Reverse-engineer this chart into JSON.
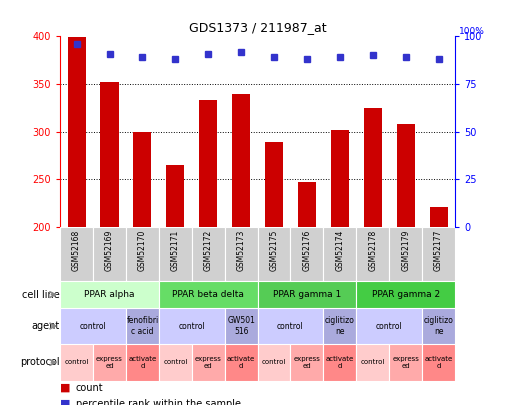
{
  "title": "GDS1373 / 211987_at",
  "samples": [
    "GSM52168",
    "GSM52169",
    "GSM52170",
    "GSM52171",
    "GSM52172",
    "GSM52173",
    "GSM52175",
    "GSM52176",
    "GSM52174",
    "GSM52178",
    "GSM52179",
    "GSM52177"
  ],
  "counts": [
    399,
    352,
    300,
    265,
    333,
    340,
    289,
    247,
    302,
    325,
    308,
    221
  ],
  "percentile": [
    96,
    91,
    89,
    88,
    91,
    92,
    89,
    88,
    89,
    90,
    89,
    88
  ],
  "bar_color": "#cc0000",
  "dot_color": "#3333cc",
  "ylim_left": [
    200,
    400
  ],
  "ylim_right": [
    0,
    100
  ],
  "yticks_left": [
    200,
    250,
    300,
    350,
    400
  ],
  "yticks_right": [
    0,
    25,
    50,
    75,
    100
  ],
  "grid_dotted": [
    250,
    300,
    350
  ],
  "cell_lines": [
    {
      "label": "PPAR alpha",
      "start": 0,
      "end": 3,
      "color": "#ccffcc"
    },
    {
      "label": "PPAR beta delta",
      "start": 3,
      "end": 6,
      "color": "#66dd66"
    },
    {
      "label": "PPAR gamma 1",
      "start": 6,
      "end": 9,
      "color": "#55cc55"
    },
    {
      "label": "PPAR gamma 2",
      "start": 9,
      "end": 12,
      "color": "#44cc44"
    }
  ],
  "agents": [
    {
      "label": "control",
      "start": 0,
      "end": 2,
      "color": "#ccccff"
    },
    {
      "label": "fenofibri\nc acid",
      "start": 2,
      "end": 3,
      "color": "#aaaadd"
    },
    {
      "label": "control",
      "start": 3,
      "end": 5,
      "color": "#ccccff"
    },
    {
      "label": "GW501\n516",
      "start": 5,
      "end": 6,
      "color": "#aaaadd"
    },
    {
      "label": "control",
      "start": 6,
      "end": 8,
      "color": "#ccccff"
    },
    {
      "label": "ciglitizo\nne",
      "start": 8,
      "end": 9,
      "color": "#aaaadd"
    },
    {
      "label": "control",
      "start": 9,
      "end": 11,
      "color": "#ccccff"
    },
    {
      "label": "ciglitizo\nne",
      "start": 11,
      "end": 12,
      "color": "#aaaadd"
    }
  ],
  "protocols": [
    {
      "label": "control",
      "start": 0,
      "end": 1,
      "color": "#ffcccc"
    },
    {
      "label": "express\ned",
      "start": 1,
      "end": 2,
      "color": "#ffaaaa"
    },
    {
      "label": "activate\nd",
      "start": 2,
      "end": 3,
      "color": "#ff8888"
    },
    {
      "label": "control",
      "start": 3,
      "end": 4,
      "color": "#ffcccc"
    },
    {
      "label": "express\ned",
      "start": 4,
      "end": 5,
      "color": "#ffaaaa"
    },
    {
      "label": "activate\nd",
      "start": 5,
      "end": 6,
      "color": "#ff8888"
    },
    {
      "label": "control",
      "start": 6,
      "end": 7,
      "color": "#ffcccc"
    },
    {
      "label": "express\ned",
      "start": 7,
      "end": 8,
      "color": "#ffaaaa"
    },
    {
      "label": "activate\nd",
      "start": 8,
      "end": 9,
      "color": "#ff8888"
    },
    {
      "label": "control",
      "start": 9,
      "end": 10,
      "color": "#ffcccc"
    },
    {
      "label": "express\ned",
      "start": 10,
      "end": 11,
      "color": "#ffaaaa"
    },
    {
      "label": "activate\nd",
      "start": 11,
      "end": 12,
      "color": "#ff8888"
    }
  ],
  "bg_color": "#ffffff",
  "plot_bg_color": "#ffffff",
  "xtick_box_color": "#d0d0d0",
  "row_label_color": "#888888",
  "arrow_color": "#888888"
}
